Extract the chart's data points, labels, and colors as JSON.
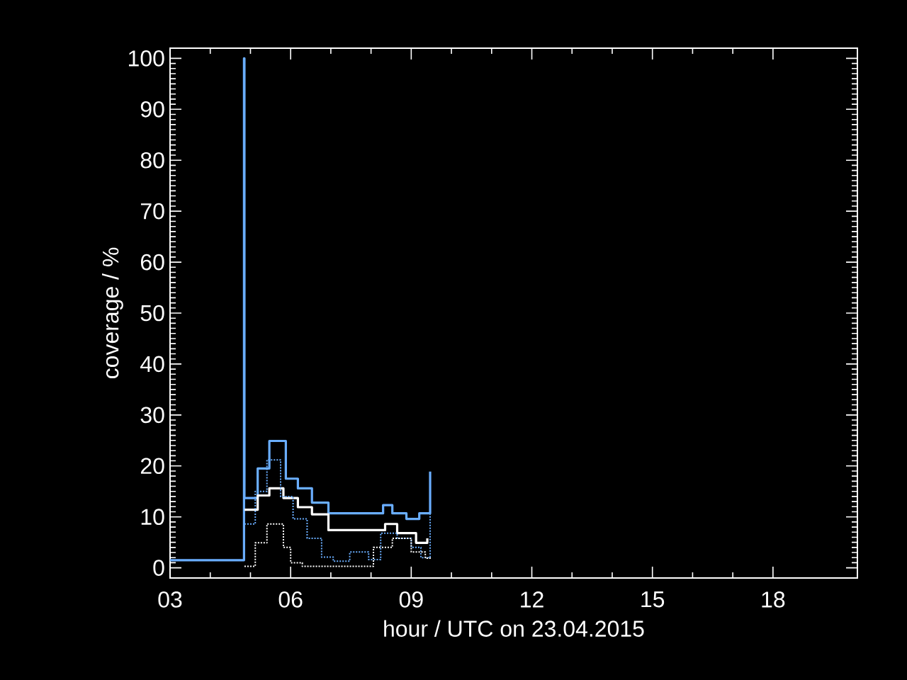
{
  "chart_data": {
    "type": "step",
    "xlabel": "hour / UTC  on  23.04.2015",
    "ylabel": "coverage / %",
    "xlim": [
      3,
      20.1
    ],
    "ylim": [
      -2,
      102
    ],
    "xticks": [
      {
        "value": 3,
        "label": "03"
      },
      {
        "value": 6,
        "label": "06"
      },
      {
        "value": 9,
        "label": "09"
      },
      {
        "value": 12,
        "label": "12"
      },
      {
        "value": 15,
        "label": "15"
      },
      {
        "value": 18,
        "label": "18"
      }
    ],
    "yticks": [
      0,
      10,
      20,
      30,
      40,
      50,
      60,
      70,
      80,
      90,
      100
    ],
    "series": [
      {
        "color": "#6aaeff",
        "line_style": "solid",
        "x": [
          3,
          4.84,
          4.85,
          5.18,
          5.47,
          5.88,
          6.18,
          6.53,
          6.94,
          7.94,
          8.3,
          8.53,
          8.88,
          9.2,
          9.47
        ],
        "values": [
          1.5,
          100,
          13.7,
          19.5,
          24.9,
          17.5,
          15.6,
          12.8,
          10.7,
          10.7,
          12.3,
          10.7,
          9.6,
          10.7,
          18.9
        ]
      },
      {
        "color": "#ffffff",
        "line_style": "solid",
        "x": [
          4.85,
          5.18,
          5.47,
          5.82,
          6.18,
          6.53,
          6.94,
          8.18,
          8.35,
          8.65,
          9.12,
          9.4
        ],
        "values": [
          11.4,
          14.2,
          15.6,
          13.7,
          11.9,
          10.5,
          7.4,
          7.4,
          8.6,
          6.8,
          4.9,
          5.8
        ]
      },
      {
        "color": "#6aaeff",
        "line_style": "dotted",
        "x": [
          4.85,
          5.12,
          5.41,
          5.75,
          6.06,
          6.41,
          6.77,
          7.06,
          7.47,
          7.94,
          8.24,
          8.65,
          9.0,
          9.24,
          9.47
        ],
        "values": [
          8.6,
          15.0,
          21.2,
          14.0,
          9.6,
          5.8,
          2.1,
          1.3,
          3.1,
          1.6,
          6.8,
          5.8,
          4.0,
          2.0,
          17
        ]
      },
      {
        "color": "#ffffff",
        "line_style": "dotted",
        "x": [
          4.85,
          5.12,
          5.41,
          5.82,
          6.0,
          6.29,
          8.06,
          8.53,
          9.0,
          9.35,
          9.47
        ],
        "values": [
          0.3,
          4.9,
          8.6,
          4.0,
          1.0,
          0.3,
          4.0,
          5.8,
          3.1,
          1.9,
          2.3
        ]
      }
    ]
  }
}
